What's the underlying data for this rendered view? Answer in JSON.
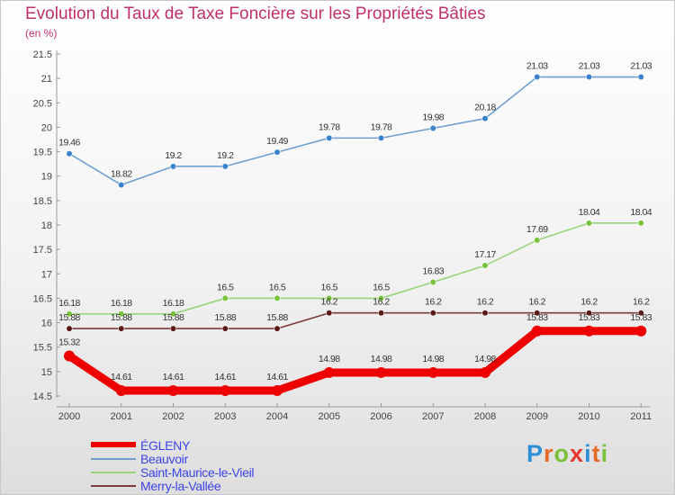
{
  "title": "Evolution du Taux de Taxe Foncière sur les Propriétés Bâties",
  "subtitle": "(en %)",
  "brand": {
    "text": "Proxiti",
    "letter_colors": [
      "#2e8fd6",
      "#e46b2a",
      "#7cbf3a",
      "#e7382f",
      "#2e8fd6",
      "#e46b2a",
      "#7cbf3a"
    ]
  },
  "chart_data": {
    "type": "line",
    "title": "Evolution du Taux de Taxe Foncière sur les Propriétés Bâties",
    "ylabel": "(en %)",
    "xlabel": "",
    "x": [
      "2000",
      "2001",
      "2002",
      "2003",
      "2004",
      "2005",
      "2006",
      "2007",
      "2008",
      "2009",
      "2010",
      "2011"
    ],
    "ylim": [
      14.5,
      21.5
    ],
    "yticks": [
      "14.5",
      "15",
      "15.5",
      "16",
      "16.5",
      "17",
      "17.5",
      "18",
      "18.5",
      "19",
      "19.5",
      "20",
      "20.5",
      "21",
      "21.5"
    ],
    "grid": false,
    "legend_position": "bottom-left",
    "series": [
      {
        "name": "ÉGLENY",
        "color": "#ee0000",
        "marker_color": "#ee0000",
        "values": [
          15.32,
          14.61,
          14.61,
          14.61,
          14.61,
          14.98,
          14.98,
          14.98,
          14.98,
          15.83,
          15.83,
          15.83
        ],
        "labels": [
          "15.32",
          "14.61",
          "14.61",
          "14.61",
          "14.61",
          "14.98",
          "14.98",
          "14.98",
          "14.98",
          "15.83",
          "15.83",
          "15.83"
        ]
      },
      {
        "name": "Beauvoir",
        "color": "#6f9fd0",
        "marker_color": "#3a82cc",
        "values": [
          19.46,
          18.82,
          19.2,
          19.2,
          19.49,
          19.78,
          19.78,
          19.98,
          20.18,
          21.03,
          21.03,
          21.03
        ],
        "labels": [
          "19.46",
          "18.82",
          "19.2",
          "19.2",
          "19.49",
          "19.78",
          "19.78",
          "19.98",
          "20.18",
          "21.03",
          "21.03",
          "21.03"
        ]
      },
      {
        "name": "Saint-Maurice-le-Vieil",
        "color": "#9bd47a",
        "marker_color": "#79c23c",
        "values": [
          16.18,
          16.18,
          16.18,
          16.5,
          16.5,
          16.5,
          16.5,
          16.83,
          17.17,
          17.69,
          18.04,
          18.04
        ],
        "labels": [
          "16.18",
          "16.18",
          "16.18",
          "16.5",
          "16.5",
          "16.5",
          "16.5",
          "16.83",
          "17.17",
          "17.69",
          "18.04",
          "18.04"
        ]
      },
      {
        "name": "Merry-la-Vallée",
        "color": "#7a3a3a",
        "marker_color": "#5a1a1a",
        "values": [
          15.88,
          15.88,
          15.88,
          15.88,
          15.88,
          16.2,
          16.2,
          16.2,
          16.2,
          16.2,
          16.2,
          16.2
        ],
        "labels": [
          "15.88",
          "15.88",
          "15.88",
          "15.88",
          "15.88",
          "16.2",
          "16.2",
          "16.2",
          "16.2",
          "16.2",
          "16.2",
          "16.2"
        ]
      }
    ]
  }
}
